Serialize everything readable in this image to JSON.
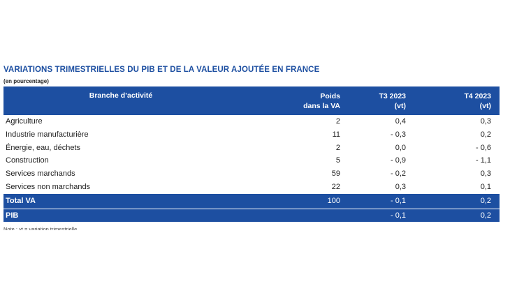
{
  "title": "VARIATIONS TRIMESTRIELLES DU PIB ET DE LA VALEUR AJOUTÉE EN FRANCE",
  "subtitle": "(en pourcentage)",
  "table": {
    "headers": {
      "branch": "Branche d’activité",
      "weight_line1": "Poids",
      "weight_line2": "dans la VA",
      "q3_line1": "T3 2023",
      "q3_line2": "(vt)",
      "q4_line1": "T4 2023",
      "q4_line2": "(vt)"
    },
    "rows": [
      {
        "label": "Agriculture",
        "weight": "2",
        "q3": "0,4",
        "q4": "0,3"
      },
      {
        "label": "Industrie manufacturière",
        "weight": "11",
        "q3": "- 0,3",
        "q4": "0,2"
      },
      {
        "label": "Énergie, eau, déchets",
        "weight": "2",
        "q3": "0,0",
        "q4": "- 0,6"
      },
      {
        "label": "Construction",
        "weight": "5",
        "q3": "- 0,9",
        "q4": "- 1,1"
      },
      {
        "label": "Services marchands",
        "weight": "59",
        "q3": "- 0,2",
        "q4": "0,3"
      },
      {
        "label": "Services non marchands",
        "weight": "22",
        "q3": "0,3",
        "q4": "0,1"
      }
    ],
    "totals": [
      {
        "label": "Total VA",
        "weight": "100",
        "q3": "- 0,1",
        "q4": "0,2"
      },
      {
        "label": "PIB",
        "weight": "",
        "q3": "- 0,1",
        "q4": "0,2"
      }
    ]
  },
  "note": "Note : vt = variation trimestrielle.",
  "colors": {
    "header_bg": "#1d4fa1",
    "title": "#1d4fa1",
    "header_text": "#ffffff"
  }
}
